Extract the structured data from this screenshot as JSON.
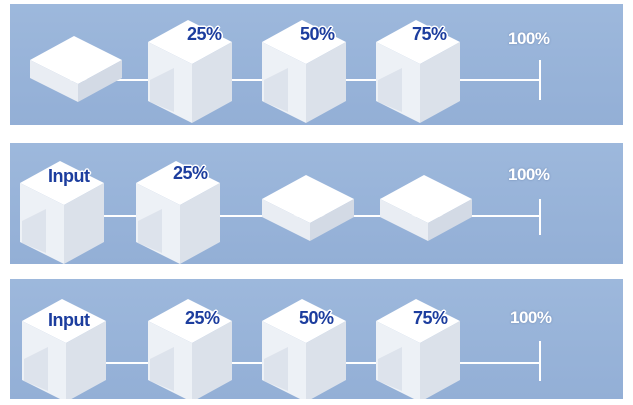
{
  "colors": {
    "band": "#9db8dc",
    "label_text": "#1c3d9e",
    "line": "#ffffff"
  },
  "rows": [
    {
      "stages": [
        {
          "shape": "flat-block",
          "label": ""
        },
        {
          "shape": "stepped-block",
          "label": "25%"
        },
        {
          "shape": "stepped-block",
          "label": "50%"
        },
        {
          "shape": "stepped-block",
          "label": "75%"
        }
      ],
      "end_label": "100%"
    },
    {
      "stages": [
        {
          "shape": "stepped-block",
          "label": "Input"
        },
        {
          "shape": "stepped-block",
          "label": "25%"
        },
        {
          "shape": "flat-block",
          "label": ""
        },
        {
          "shape": "flat-block",
          "label": ""
        }
      ],
      "end_label": "100%"
    },
    {
      "stages": [
        {
          "shape": "stepped-block",
          "label": "Input"
        },
        {
          "shape": "stepped-block",
          "label": "25%"
        },
        {
          "shape": "stepped-block",
          "label": "50%"
        },
        {
          "shape": "stepped-block",
          "label": "75%"
        }
      ],
      "end_label": "100%"
    }
  ]
}
